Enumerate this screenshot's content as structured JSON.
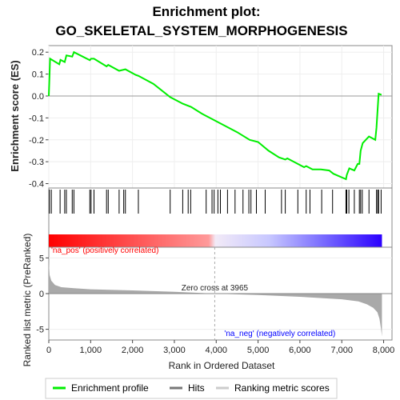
{
  "chart_data": {
    "type": "line",
    "title_line1": "Enrichment plot:",
    "title_line2": "GO_SKELETAL_SYSTEM_MORPHOGENESIS",
    "es_panel": {
      "ylabel": "Enrichment score (ES)",
      "ylim": [
        -0.42,
        0.23
      ],
      "yticks": [
        "0.2",
        "0.1",
        "0.0",
        "-0.1",
        "-0.2",
        "-0.3",
        "-0.4"
      ],
      "ytick_values": [
        0.2,
        0.1,
        0.0,
        -0.1,
        -0.2,
        -0.3,
        -0.4
      ],
      "series": [
        {
          "name": "Enrichment profile",
          "x": [
            0,
            30,
            250,
            280,
            380,
            420,
            560,
            600,
            980,
            1010,
            1080,
            1380,
            1420,
            1680,
            1790,
            1830,
            2080,
            2140,
            2500,
            2900,
            3200,
            3400,
            3650,
            3900,
            4200,
            4500,
            4800,
            5000,
            5250,
            5500,
            5650,
            5700,
            5950,
            6100,
            6150,
            6300,
            6500,
            6700,
            6800,
            7100,
            7120,
            7180,
            7300,
            7380,
            7420,
            7450,
            7500,
            7650,
            7800,
            7830,
            7850,
            7880,
            7950
          ],
          "y": [
            0.0,
            0.17,
            0.145,
            0.165,
            0.155,
            0.185,
            0.18,
            0.2,
            0.163,
            0.17,
            0.17,
            0.135,
            0.142,
            0.115,
            0.12,
            0.122,
            0.096,
            0.092,
            0.055,
            -0.005,
            -0.035,
            -0.05,
            -0.08,
            -0.105,
            -0.135,
            -0.165,
            -0.2,
            -0.21,
            -0.25,
            -0.28,
            -0.29,
            -0.285,
            -0.31,
            -0.325,
            -0.32,
            -0.335,
            -0.335,
            -0.34,
            -0.355,
            -0.38,
            -0.36,
            -0.33,
            -0.34,
            -0.31,
            -0.31,
            -0.25,
            -0.215,
            -0.185,
            -0.2,
            -0.145,
            -0.08,
            0.01,
            0.005
          ]
        }
      ]
    },
    "hits": [
      15,
      60,
      270,
      380,
      420,
      560,
      600,
      980,
      1010,
      1080,
      1380,
      1420,
      1680,
      1790,
      1830,
      2140,
      2900,
      3200,
      3330,
      3390,
      3760,
      3900,
      3950,
      4040,
      4100,
      4270,
      4450,
      4640,
      4780,
      4830,
      4960,
      5170,
      5560,
      5650,
      5950,
      6150,
      6240,
      6520,
      6780,
      7100,
      7120,
      7170,
      7300,
      7420,
      7450,
      7490,
      7650,
      7830,
      7860,
      7880,
      7940
    ],
    "metric_panel": {
      "ylabel": "Ranked list metric (PreRanked)",
      "ylim": [
        -6.5,
        6.5
      ],
      "yticks": [
        "5",
        "0",
        "-5"
      ],
      "ytick_values": [
        5,
        0,
        -5
      ],
      "curve_x": [
        0,
        20,
        60,
        150,
        300,
        600,
        1000,
        2000,
        3000,
        3965,
        5000,
        6000,
        7000,
        7400,
        7600,
        7750,
        7850,
        7900,
        7940,
        7960
      ],
      "curve_y": [
        4.5,
        2.6,
        1.8,
        1.2,
        0.9,
        0.75,
        0.6,
        0.45,
        0.25,
        0.0,
        -0.2,
        -0.45,
        -0.8,
        -1.1,
        -1.5,
        -2.0,
        -2.6,
        -3.5,
        -5.0,
        -6.0
      ]
    },
    "xlabel": "Rank in Ordered Dataset",
    "xlim": [
      0,
      8200
    ],
    "xticks": [
      "0",
      "1,000",
      "2,000",
      "3,000",
      "4,000",
      "5,000",
      "6,000",
      "7,000",
      "8,000"
    ],
    "xtick_values": [
      0,
      1000,
      2000,
      3000,
      4000,
      5000,
      6000,
      7000,
      8000
    ],
    "n_genes": 7960,
    "zero_cross": 3965,
    "annotations": {
      "zero_cross_label": "Zero cross at 3965",
      "pos_label": "'na_pos' (positively correlated)",
      "neg_label": "'na_neg' (negatively correlated)"
    },
    "legend": [
      {
        "label": "Enrichment profile",
        "color": "#00ee00"
      },
      {
        "label": "Hits",
        "color": "#777777"
      },
      {
        "label": "Ranking metric scores",
        "color": "#cccccc"
      }
    ],
    "colors": {
      "es_line": "#00ee00",
      "hit_line": "#000000",
      "metric_fill": "#a9a9a9",
      "pos_text": "#ff0000",
      "neg_text": "#0000ff",
      "frame": "#888888"
    }
  }
}
